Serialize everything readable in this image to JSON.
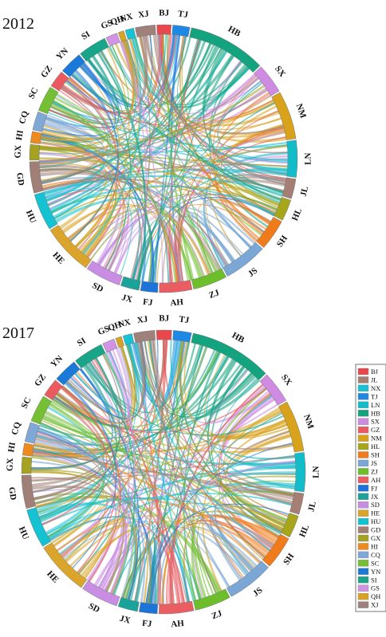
{
  "panels": [
    {
      "year": "2012"
    },
    {
      "year": "2017"
    }
  ],
  "regions": [
    {
      "code": "BJ",
      "color": "#e8474c"
    },
    {
      "code": "TJ",
      "color": "#1e88e5"
    },
    {
      "code": "HB",
      "color": "#13a37f"
    },
    {
      "code": "SX",
      "color": "#cf8be2"
    },
    {
      "code": "NM",
      "color": "#d9a21b"
    },
    {
      "code": "LN",
      "color": "#12bcc9"
    },
    {
      "code": "JL",
      "color": "#a67f74"
    },
    {
      "code": "HL",
      "color": "#a7a51a"
    },
    {
      "code": "SH",
      "color": "#f07b1b"
    },
    {
      "code": "JS",
      "color": "#7aa7d6"
    },
    {
      "code": "ZJ",
      "color": "#6cbf2b"
    },
    {
      "code": "AH",
      "color": "#ea5d63"
    },
    {
      "code": "FJ",
      "color": "#1c74d8"
    },
    {
      "code": "JX",
      "color": "#1aa39a"
    },
    {
      "code": "SD",
      "color": "#c98ee4"
    },
    {
      "code": "HE",
      "color": "#daa52a"
    },
    {
      "code": "HU",
      "color": "#14c2d2"
    },
    {
      "code": "GD",
      "color": "#a07f77"
    },
    {
      "code": "GX",
      "color": "#a6a221"
    },
    {
      "code": "HI",
      "color": "#ef8a1f"
    },
    {
      "code": "CQ",
      "color": "#7fa8d7"
    },
    {
      "code": "SC",
      "color": "#75bf35"
    },
    {
      "code": "GZ",
      "color": "#ea5a5f"
    },
    {
      "code": "YN",
      "color": "#1b7ad9"
    },
    {
      "code": "SI",
      "color": "#19a58a"
    },
    {
      "code": "GS",
      "color": "#d193e4"
    },
    {
      "code": "QH",
      "color": "#d7a325"
    },
    {
      "code": "NX",
      "color": "#17c2d4"
    },
    {
      "code": "XJ",
      "color": "#a0807b"
    }
  ],
  "legend": [
    "BJ",
    "JL",
    "NX",
    "TJ",
    "LN",
    "HB",
    "SX",
    "GZ",
    "NM",
    "HL",
    "SH",
    "JS",
    "ZJ",
    "AH",
    "FJ",
    "JX",
    "SD",
    "HE",
    "HU",
    "GD",
    "GX",
    "HI",
    "CQ",
    "SC",
    "YN",
    "SI",
    "GS",
    "QH",
    "XJ"
  ]
}
